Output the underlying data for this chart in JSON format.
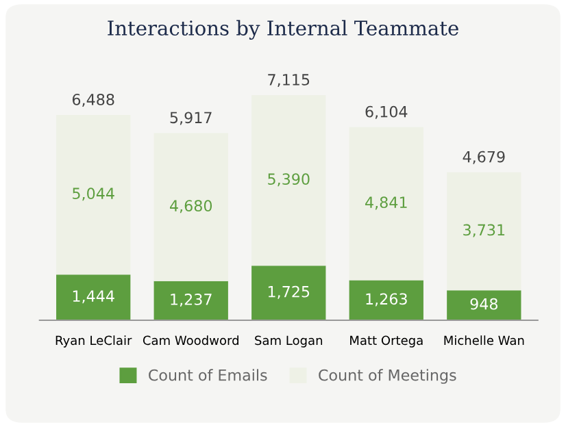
{
  "chart_data": {
    "type": "bar",
    "title": "Interactions by Internal Teammate",
    "stacked": true,
    "legend": "bottom",
    "grid": false,
    "categories": [
      "Ryan LeClair",
      "Cam Woodword",
      "Sam Logan",
      "Matt Ortega",
      "Michelle Wan"
    ],
    "series": [
      {
        "name": "Count of Emails",
        "color": "#5d9e3f",
        "values": [
          1444,
          1237,
          1725,
          1263,
          948
        ],
        "value_labels": [
          "1,444",
          "1,237",
          "1,725",
          "1,263",
          "948"
        ]
      },
      {
        "name": "Count of Meetings",
        "color": "#eef1e6",
        "values": [
          5044,
          4680,
          5390,
          4841,
          3731
        ],
        "value_labels": [
          "5,044",
          "4,680",
          "5,390",
          "4,841",
          "3,731"
        ]
      }
    ],
    "totals": [
      "6,488",
      "5,917",
      "7,115",
      "6,104",
      "4,679"
    ]
  }
}
